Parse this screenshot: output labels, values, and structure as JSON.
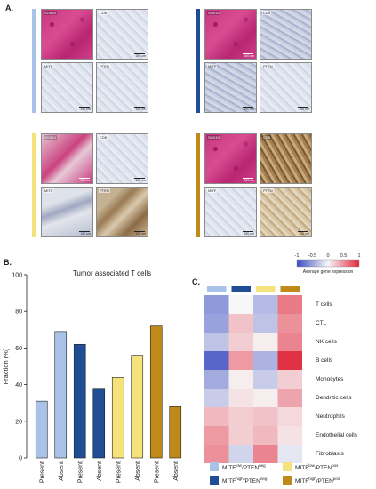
{
  "panel_a": {
    "letter": "A.",
    "groups": [
      {
        "color": "#a9c3e8",
        "tiles": [
          {
            "label": "SOX10",
            "scale": "",
            "style": "ihc-pink"
          },
          {
            "label": "CD8",
            "scale": "100 um",
            "style": "ihc-blue"
          },
          {
            "label": "MITF",
            "scale": "100 um",
            "style": "ihc-blue"
          },
          {
            "label": "PTEN",
            "scale": "100 um",
            "style": "ihc-blue"
          }
        ]
      },
      {
        "color": "#1f4e96",
        "tiles": [
          {
            "label": "SOX10",
            "scale": "100 um",
            "style": "ihc-pink"
          },
          {
            "label": "CD8",
            "scale": "",
            "style": "ihc-blue-dense"
          },
          {
            "label": "MITF",
            "scale": "100 um",
            "style": "ihc-blue-dense"
          },
          {
            "label": "PTEN",
            "scale": "100 um",
            "style": "ihc-blue"
          }
        ]
      },
      {
        "color": "#f6e27a",
        "tiles": [
          {
            "label": "SOX10",
            "scale": "100 um",
            "style": "ihc-pink-light"
          },
          {
            "label": "CD8",
            "scale": "100 um",
            "style": "ihc-blue"
          },
          {
            "label": "MITF",
            "scale": "100 um",
            "style": "ihc-mixed"
          },
          {
            "label": "PTEN",
            "scale": "100 um",
            "style": "ihc-stroma"
          }
        ]
      },
      {
        "color": "#c08a1a",
        "tiles": [
          {
            "label": "SOX10",
            "scale": "100 um",
            "style": "ihc-pink"
          },
          {
            "label": "CD8",
            "scale": "",
            "style": "ihc-brown"
          },
          {
            "label": "MITF",
            "scale": "100 um",
            "style": "ihc-blue"
          },
          {
            "label": "PTEN",
            "scale": "100 um",
            "style": "ihc-tan"
          }
        ]
      }
    ]
  },
  "panel_b": {
    "letter": "B.",
    "chart_data": {
      "type": "bar",
      "title": "Tumor associated T cells",
      "ylabel": "Fraction (%)",
      "ylim": [
        0,
        100
      ],
      "yticks": [
        "0",
        "20",
        "40",
        "60",
        "80",
        "100"
      ],
      "categories": [
        "Present",
        "Absent",
        "Present",
        "Absent",
        "Present",
        "Absent",
        "Present",
        "Absent"
      ],
      "values": [
        31,
        69,
        62,
        38,
        44,
        56,
        72,
        28
      ],
      "colors": [
        "#a9c3e8",
        "#a9c3e8",
        "#1f4e96",
        "#1f4e96",
        "#f6e27a",
        "#f6e27a",
        "#c08a1a",
        "#c08a1a"
      ]
    }
  },
  "panel_c": {
    "letter": "C.",
    "colorbar": {
      "ticks": [
        "-1",
        "-0.5",
        "0",
        "0.5",
        "1"
      ],
      "label": "Average gene expression",
      "low": "#3b4cc0",
      "mid": "#f7f7f7",
      "high": "#e0283c"
    },
    "column_colors": [
      "#a9c3e8",
      "#1f4e96",
      "#f6e27a",
      "#c08a1a"
    ],
    "rows": [
      "T cells",
      "CTL",
      "NK cells",
      "B cells",
      "Monocytes",
      "Dendritic cells",
      "Neutrophils",
      "Endothelial cells",
      "Fibroblasts"
    ],
    "matrix": [
      [
        -0.55,
        0.0,
        -0.35,
        0.6
      ],
      [
        -0.5,
        0.25,
        -0.3,
        0.5
      ],
      [
        -0.3,
        0.2,
        0.05,
        0.55
      ],
      [
        -0.85,
        0.45,
        -0.4,
        0.95
      ],
      [
        -0.45,
        0.05,
        -0.25,
        0.2
      ],
      [
        -0.25,
        0.1,
        0.05,
        0.4
      ],
      [
        0.3,
        0.2,
        0.25,
        0.15
      ],
      [
        0.45,
        0.2,
        0.3,
        0.1
      ],
      [
        0.5,
        -0.2,
        0.55,
        -0.1
      ]
    ],
    "legend": [
      {
        "color": "#a9c3e8",
        "base": "MITF",
        "sup1": "low",
        "mid": "/PTEN",
        "sup2": "neg"
      },
      {
        "color": "#f6e27a",
        "base": "MITF",
        "sup1": "low",
        "mid": "/PTEN",
        "sup2": "pos"
      },
      {
        "color": "#1f4e96",
        "base": "MITF",
        "sup1": "high",
        "mid": "/PTEN",
        "sup2": "neg"
      },
      {
        "color": "#c08a1a",
        "base": "MITF",
        "sup1": "high",
        "mid": "/PTEN",
        "sup2": "pos"
      }
    ]
  }
}
